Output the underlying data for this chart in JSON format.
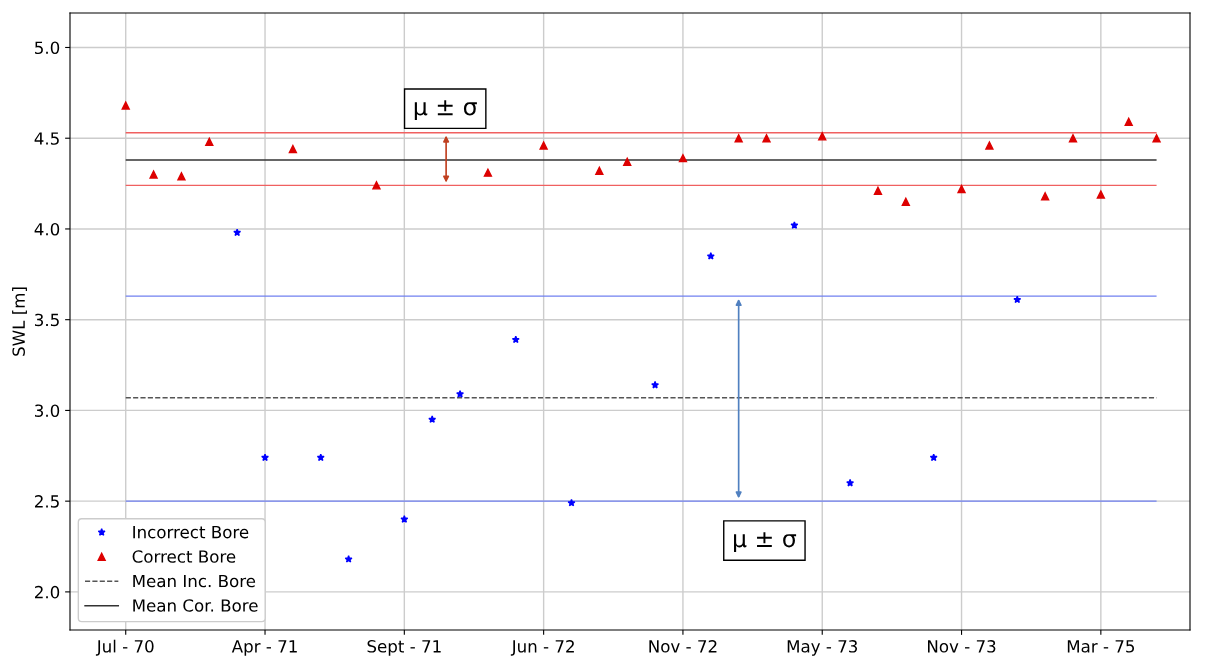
{
  "chart_data": {
    "type": "scatter",
    "ylabel": "SWL [m]",
    "categories": [
      "Jul - 70",
      null,
      null,
      null,
      null,
      "Apr - 71",
      null,
      null,
      null,
      null,
      "Sept - 71",
      null,
      null,
      null,
      null,
      "Jun - 72",
      null,
      null,
      null,
      null,
      "Nov - 72",
      null,
      null,
      null,
      null,
      "May - 73",
      null,
      null,
      null,
      null,
      "Nov - 73",
      null,
      null,
      null,
      null,
      "Mar - 75",
      null,
      null
    ],
    "series": [
      {
        "name": "Incorrect Bore",
        "color": "#0000ff",
        "marker": "star",
        "values": [
          null,
          null,
          null,
          null,
          3.98,
          2.74,
          null,
          2.74,
          2.18,
          null,
          2.4,
          2.95,
          3.09,
          null,
          3.39,
          null,
          2.49,
          null,
          null,
          3.14,
          null,
          3.85,
          null,
          null,
          4.02,
          null,
          2.6,
          null,
          null,
          2.74,
          null,
          null,
          3.61,
          null,
          null,
          null,
          null,
          null
        ]
      },
      {
        "name": "Correct Bore",
        "color": "#dd0000",
        "marker": "triangle",
        "values": [
          4.68,
          4.3,
          4.29,
          4.48,
          null,
          null,
          4.44,
          null,
          null,
          4.24,
          null,
          null,
          null,
          4.31,
          null,
          4.46,
          null,
          4.32,
          4.37,
          null,
          4.39,
          null,
          4.5,
          4.5,
          null,
          4.51,
          null,
          4.21,
          4.15,
          null,
          4.22,
          4.46,
          null,
          4.18,
          4.5,
          4.19,
          4.59,
          4.5
        ]
      }
    ],
    "ref_lines": [
      {
        "axis": "y",
        "value": 3.07,
        "label": "Mean Inc. Bore",
        "color": "#555555",
        "line_style": "dashed"
      },
      {
        "axis": "y",
        "value": 4.38,
        "label": "Mean Cor. Bore",
        "color": "#333333",
        "line_style": "solid"
      },
      {
        "axis": "y",
        "value": 3.63,
        "color": "#7080f0",
        "line_style": "solid"
      },
      {
        "axis": "y",
        "value": 2.5,
        "color": "#7080f0",
        "line_style": "solid"
      },
      {
        "axis": "y",
        "value": 4.53,
        "color": "#f06060",
        "line_style": "solid"
      },
      {
        "axis": "y",
        "value": 4.24,
        "color": "#f06060",
        "line_style": "solid"
      }
    ],
    "annotations": [
      "μ ± σ",
      "μ ± σ"
    ],
    "ylim": [
      1.79,
      5.19
    ],
    "yticks": [
      {
        "value": 2,
        "label": "2.0"
      },
      2.5,
      {
        "value": 3,
        "label": "3.0"
      },
      3.5,
      {
        "value": 4,
        "label": "4.0"
      },
      4.5,
      {
        "value": 5,
        "label": "5.0"
      }
    ],
    "grid": true,
    "legend": "bottom left"
  }
}
